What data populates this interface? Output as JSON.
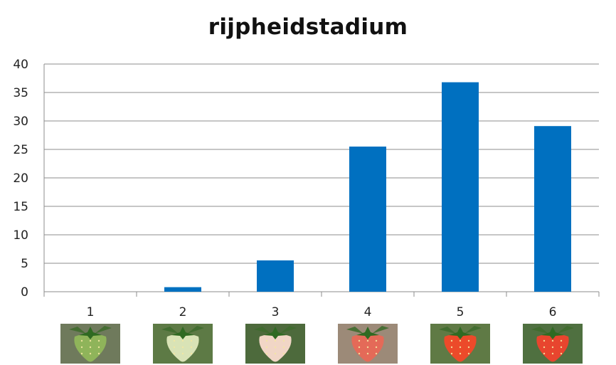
{
  "chart_data": {
    "type": "bar",
    "title": "rijpheidstadium",
    "xlabel": "",
    "ylabel": "",
    "categories": [
      "1",
      "2",
      "3",
      "4",
      "5",
      "6"
    ],
    "values": [
      0,
      0.8,
      5.5,
      25.5,
      36.8,
      29.1
    ],
    "ylim": [
      0,
      40
    ],
    "yticks": [
      0,
      5,
      10,
      15,
      20,
      25,
      30,
      35,
      40
    ],
    "grid": true,
    "bar_color": "#0070C0",
    "category_images": [
      "unripe-green-strawberry",
      "white-strawberry",
      "white-pink-strawberry",
      "pink-red-strawberry",
      "red-strawberry",
      "ripe-red-strawberry"
    ],
    "image_colors": [
      {
        "fruit": "#8fb45a",
        "bg": "#6f7a5c"
      },
      {
        "fruit": "#d9e3b6",
        "bg": "#5d7a45"
      },
      {
        "fruit": "#f1d6c6",
        "bg": "#4d6a3c"
      },
      {
        "fruit": "#e46a58",
        "bg": "#9c8a78"
      },
      {
        "fruit": "#ec4a2a",
        "bg": "#5f7a45"
      },
      {
        "fruit": "#e8452e",
        "bg": "#4f7040"
      }
    ]
  }
}
